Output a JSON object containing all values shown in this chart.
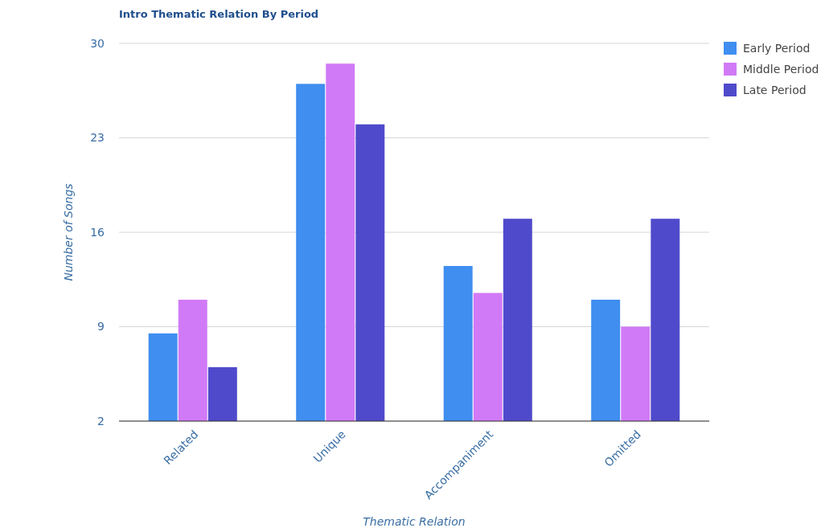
{
  "chart_data": {
    "type": "bar",
    "title": "Intro Thematic Relation By Period",
    "xlabel": "Thematic Relation",
    "ylabel": "Number of Songs",
    "categories": [
      "Related",
      "Unique",
      "Accompaniment",
      "Omitted"
    ],
    "series": [
      {
        "name": "Early Period",
        "color": "#3f8ef0",
        "values": [
          8.5,
          27,
          13.5,
          11
        ]
      },
      {
        "name": "Middle Period",
        "color": "#d17af7",
        "values": [
          11,
          28.5,
          11.5,
          9
        ]
      },
      {
        "name": "Late Period",
        "color": "#4f4acb",
        "values": [
          6,
          24,
          17,
          17
        ]
      }
    ],
    "ylim": [
      2,
      30
    ],
    "yticks": [
      2,
      9,
      16,
      23,
      30
    ],
    "grid": "y",
    "legend": "top right"
  }
}
